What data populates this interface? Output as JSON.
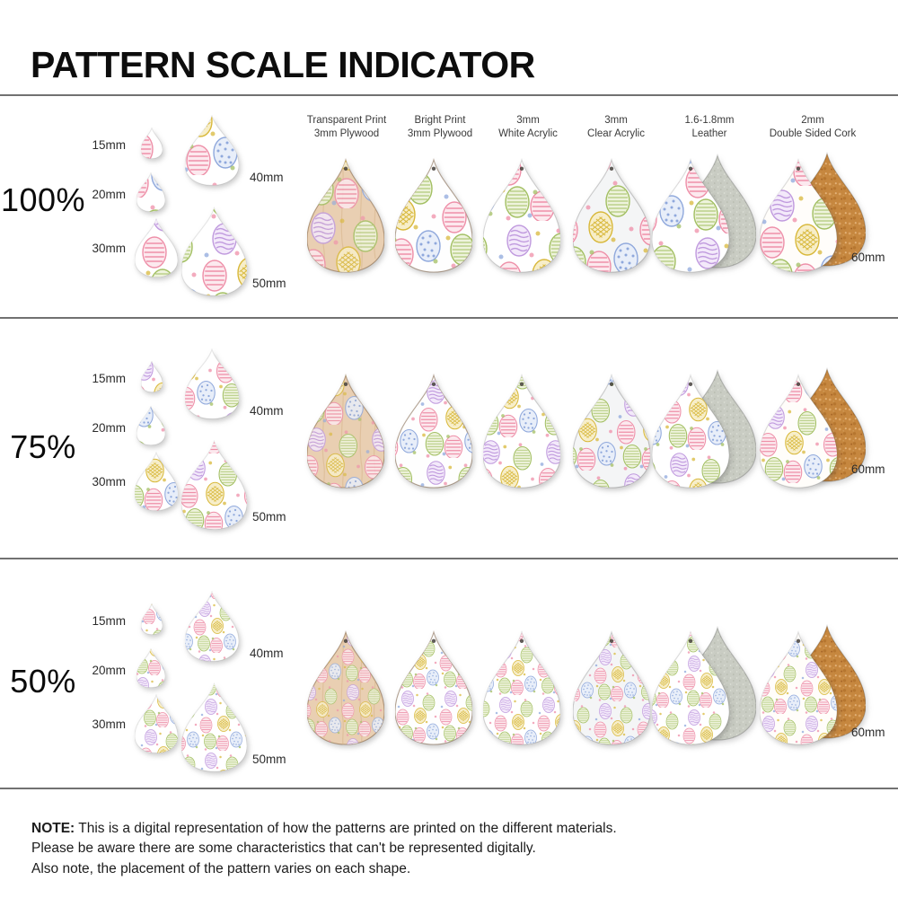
{
  "title": "PATTERN SCALE INDICATOR",
  "columns": [
    {
      "label_line1": "Transparent Print",
      "label_line2": "3mm Plywood"
    },
    {
      "label_line1": "Bright Print",
      "label_line2": "3mm Plywood"
    },
    {
      "label_line1": "3mm",
      "label_line2": "White Acrylic"
    },
    {
      "label_line1": "3mm",
      "label_line2": "Clear Acrylic"
    },
    {
      "label_line1": "1.6-1.8mm",
      "label_line2": "Leather"
    },
    {
      "label_line1": "2mm",
      "label_line2": "Double Sided Cork"
    }
  ],
  "rows": [
    {
      "scale_label": "100%",
      "scale": 1
    },
    {
      "scale_label": "75%",
      "scale": 0.75
    },
    {
      "scale_label": "50%",
      "scale": 0.5
    }
  ],
  "size_labels": [
    "15mm",
    "20mm",
    "30mm",
    "40mm",
    "50mm"
  ],
  "large_size_label": "60mm",
  "note": {
    "prefix": "NOTE:",
    "line1": "This is a digital representation of how the patterns are printed on the different materials.",
    "line2": "Please be aware there are some characteristics that can't be represented digitally.",
    "line3": "Also note, the placement of the pattern varies on each shape."
  },
  "colors": {
    "egg_pink": "#ee8fa8",
    "egg_yellow": "#d8b83a",
    "egg_green": "#a2bf62",
    "egg_blue": "#8fa8dc",
    "egg_purple": "#c09ade",
    "plywood_tan": "#e9cfb2",
    "cork_orange": "#c6873f",
    "suede_gray": "#c9ccc3",
    "acrylic_clear": "#f4f5f6",
    "white": "#ffffff"
  }
}
